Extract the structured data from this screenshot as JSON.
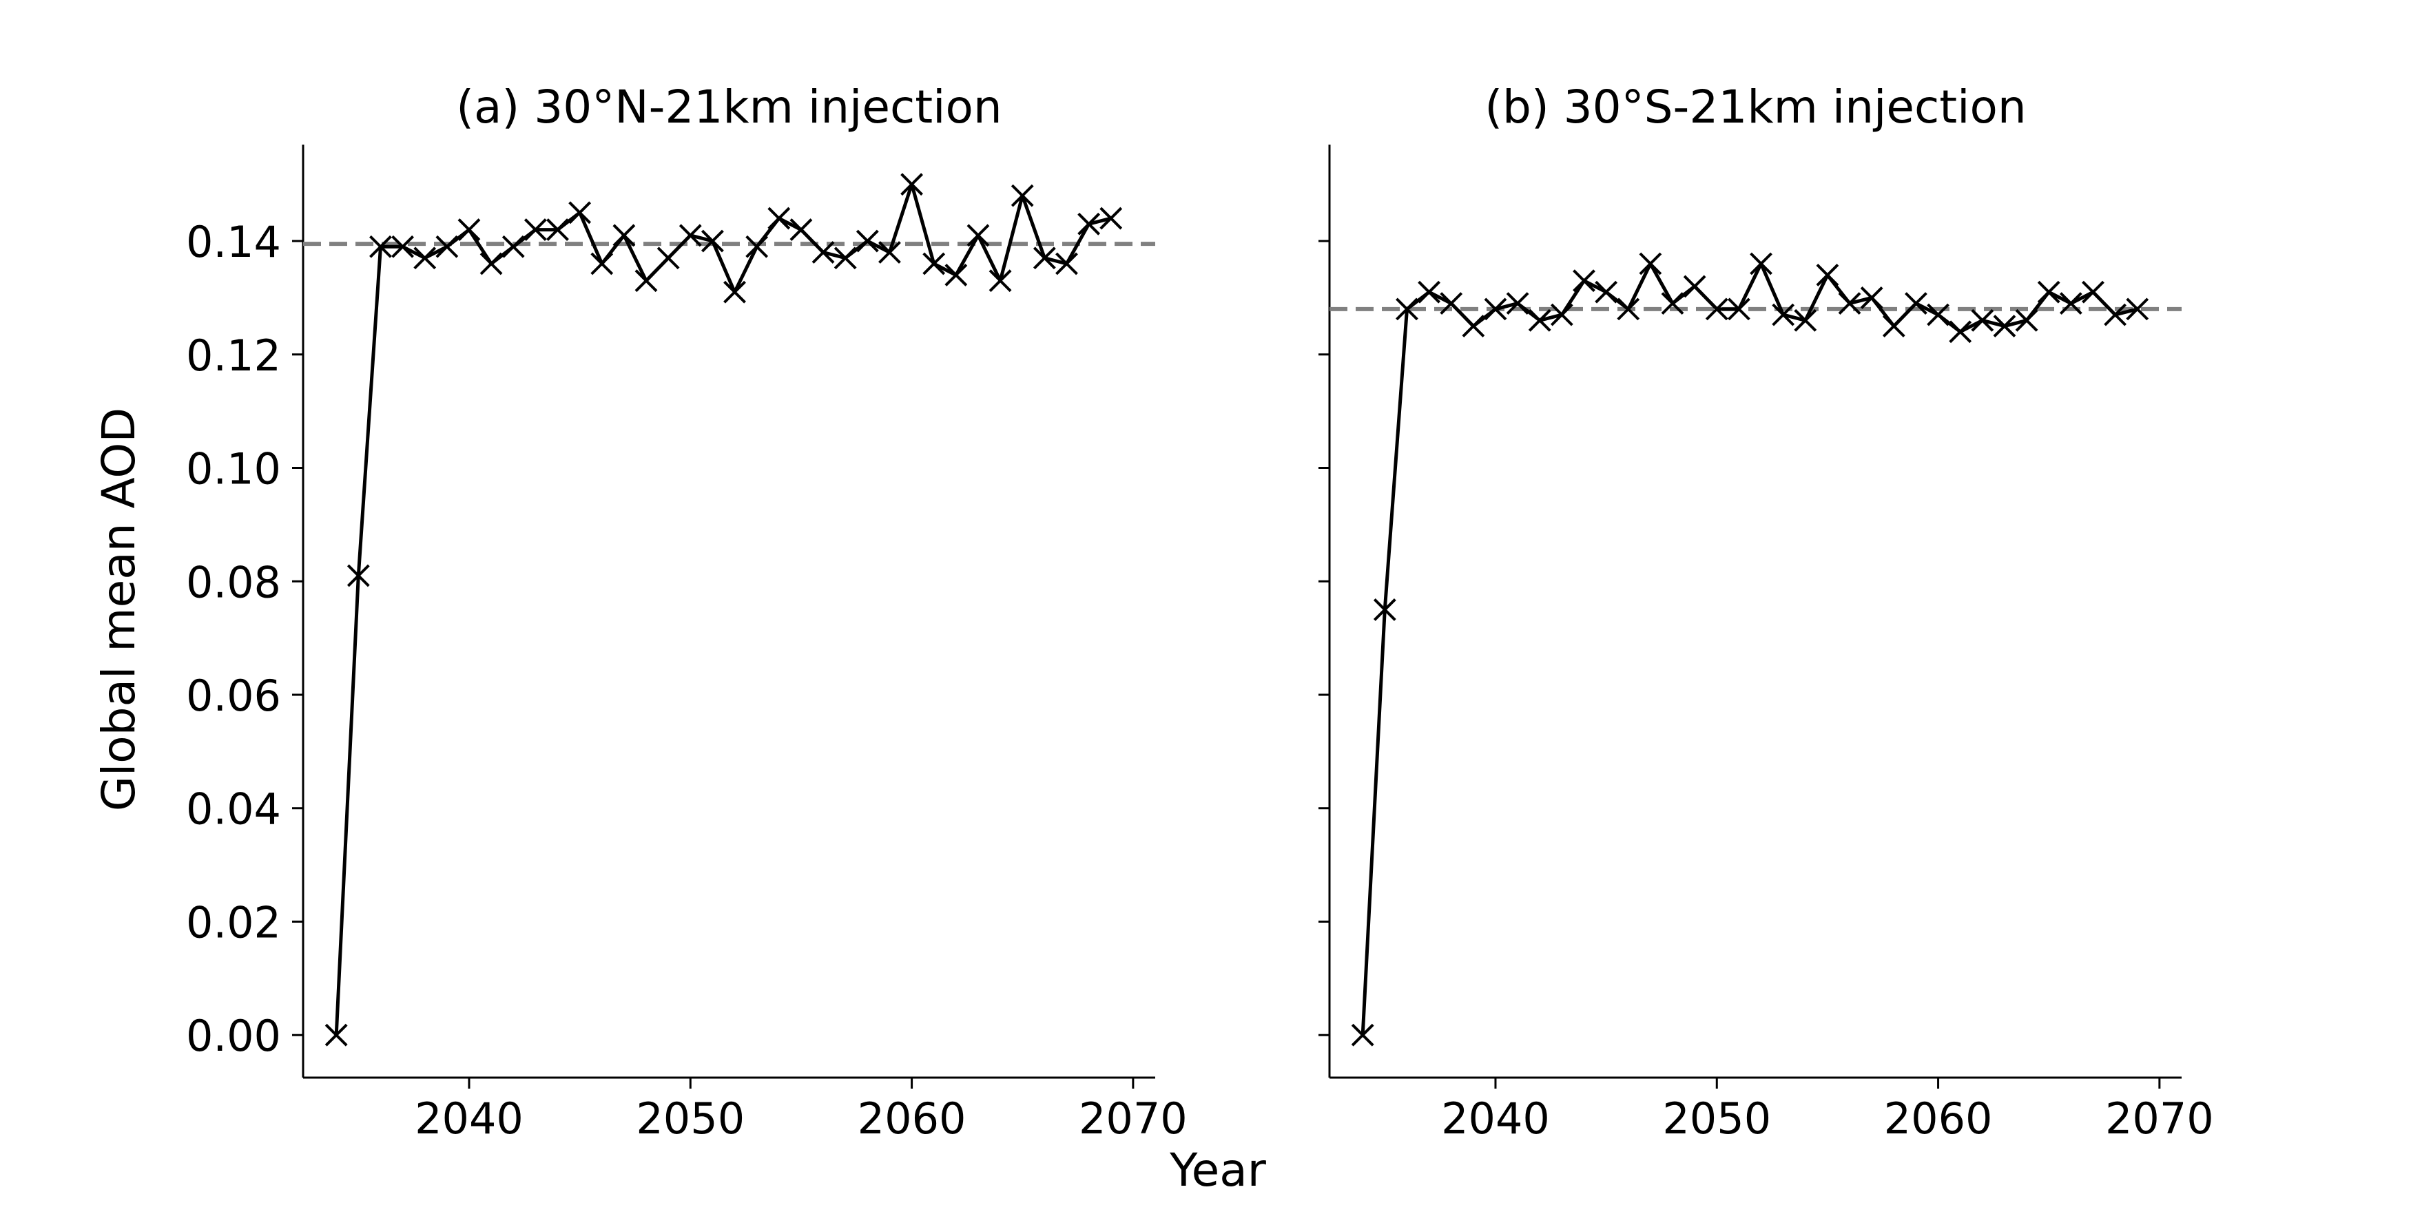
{
  "figure": {
    "xlabel": "Year",
    "ylabel": "Global mean AOD"
  },
  "chart_data": [
    {
      "type": "line",
      "title": "(a) 30°N-21km injection",
      "xlabel": "Year",
      "ylabel": "Global mean AOD",
      "xlim": [
        2032.5,
        2071
      ],
      "ylim": [
        -0.0075,
        0.157
      ],
      "xticks": [
        2040,
        2050,
        2060,
        2070
      ],
      "yticks": [
        "0.00",
        "0.02",
        "0.04",
        "0.06",
        "0.08",
        "0.10",
        "0.12",
        "0.14"
      ],
      "grid": false,
      "series": [
        {
          "marker": "x",
          "color": "#000000",
          "x": [
            2034,
            2035,
            2036,
            2037,
            2038,
            2039,
            2040,
            2041,
            2042,
            2043,
            2044,
            2045,
            2046,
            2047,
            2048,
            2049,
            2050,
            2051,
            2052,
            2053,
            2054,
            2055,
            2056,
            2057,
            2058,
            2059,
            2060,
            2061,
            2062,
            2063,
            2064,
            2065,
            2066,
            2067,
            2068,
            2069
          ],
          "y": [
            0.0,
            0.081,
            0.139,
            0.139,
            0.137,
            0.139,
            0.142,
            0.136,
            0.139,
            0.142,
            0.142,
            0.145,
            0.136,
            0.141,
            0.133,
            0.137,
            0.141,
            0.14,
            0.131,
            0.139,
            0.144,
            0.142,
            0.138,
            0.137,
            0.14,
            0.138,
            0.15,
            0.136,
            0.134,
            0.141,
            0.133,
            0.148,
            0.137,
            0.136,
            0.143,
            0.144
          ]
        }
      ],
      "reference_line": {
        "y": 0.1395,
        "style": "dashed",
        "color": "#808080"
      }
    },
    {
      "type": "line",
      "title": "(b) 30°S-21km injection",
      "xlabel": "Year",
      "ylabel": "Global mean AOD",
      "xlim": [
        2032.5,
        2071
      ],
      "ylim": [
        -0.0075,
        0.157
      ],
      "xticks": [
        2040,
        2050,
        2060,
        2070
      ],
      "yticks": [
        "0.00",
        "0.02",
        "0.04",
        "0.06",
        "0.08",
        "0.10",
        "0.12",
        "0.14"
      ],
      "grid": false,
      "series": [
        {
          "marker": "x",
          "color": "#000000",
          "x": [
            2034,
            2035,
            2036,
            2037,
            2038,
            2039,
            2040,
            2041,
            2042,
            2043,
            2044,
            2045,
            2046,
            2047,
            2048,
            2049,
            2050,
            2051,
            2052,
            2053,
            2054,
            2055,
            2056,
            2057,
            2058,
            2059,
            2060,
            2061,
            2062,
            2063,
            2064,
            2065,
            2066,
            2067,
            2068,
            2069
          ],
          "y": [
            0.0,
            0.075,
            0.128,
            0.131,
            0.129,
            0.125,
            0.128,
            0.129,
            0.126,
            0.127,
            0.133,
            0.131,
            0.128,
            0.136,
            0.129,
            0.132,
            0.128,
            0.128,
            0.136,
            0.127,
            0.126,
            0.134,
            0.129,
            0.13,
            0.125,
            0.129,
            0.127,
            0.124,
            0.126,
            0.125,
            0.126,
            0.131,
            0.129,
            0.131,
            0.127,
            0.128
          ]
        }
      ],
      "reference_line": {
        "y": 0.128,
        "style": "dashed",
        "color": "#808080"
      }
    }
  ]
}
